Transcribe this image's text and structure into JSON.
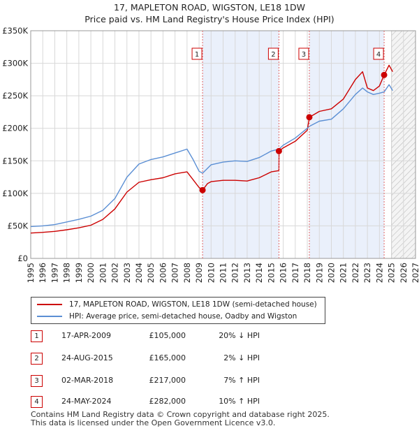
{
  "chart_data": {
    "type": "line",
    "title": "17, MAPLETON ROAD, WIGSTON, LE18 1DW",
    "subtitle": "Price paid vs. HM Land Registry's House Price Index (HPI)",
    "xlim": [
      1995,
      2027
    ],
    "ylim": [
      0,
      350000
    ],
    "x_ticks": [
      "1995",
      "1996",
      "1997",
      "1998",
      "1999",
      "2000",
      "2001",
      "2002",
      "2003",
      "2004",
      "2005",
      "2006",
      "2007",
      "2008",
      "2009",
      "2010",
      "2011",
      "2012",
      "2013",
      "2014",
      "2015",
      "2016",
      "2017",
      "2018",
      "2019",
      "2020",
      "2021",
      "2022",
      "2023",
      "2024",
      "2025",
      "2026",
      "2027"
    ],
    "y_ticks": [
      {
        "value": 0,
        "label": "£0"
      },
      {
        "value": 50000,
        "label": "£50K"
      },
      {
        "value": 100000,
        "label": "£100K"
      },
      {
        "value": 150000,
        "label": "£150K"
      },
      {
        "value": 200000,
        "label": "£200K"
      },
      {
        "value": 250000,
        "label": "£250K"
      },
      {
        "value": 300000,
        "label": "£300K"
      },
      {
        "value": 350000,
        "label": "£350K"
      }
    ],
    "grid": true,
    "forecast_start": 2025.0,
    "series": [
      {
        "name": "17, MAPLETON ROAD, WIGSTON, LE18 1DW (semi-detached house)",
        "color": "#cc0000",
        "x": [
          1995.0,
          1996.0,
          1997.0,
          1998.0,
          1999.0,
          2000.0,
          2001.0,
          2002.0,
          2003.0,
          2004.0,
          2005.0,
          2006.0,
          2007.0,
          2008.0,
          2008.5,
          2009.0,
          2009.29,
          2009.7,
          2010.0,
          2011.0,
          2012.0,
          2013.0,
          2014.0,
          2015.0,
          2015.64,
          2015.65,
          2016.0,
          2017.0,
          2018.0,
          2018.17,
          2019.0,
          2020.0,
          2021.0,
          2022.0,
          2022.6,
          2023.0,
          2023.5,
          2024.0,
          2024.39,
          2024.8,
          2025.1
        ],
        "y": [
          39000,
          40000,
          41500,
          44000,
          47000,
          51000,
          60000,
          76000,
          102000,
          117000,
          121000,
          124000,
          130000,
          133000,
          121000,
          109000,
          105000,
          115000,
          118000,
          120000,
          120000,
          119000,
          124000,
          133000,
          135000,
          165000,
          170000,
          180000,
          197000,
          217000,
          226000,
          230000,
          245000,
          275000,
          287000,
          262000,
          258000,
          265000,
          282000,
          297000,
          287000
        ]
      },
      {
        "name": "HPI: Average price, semi-detached house, Oadby and Wigston",
        "color": "#5b8fd4",
        "x": [
          1995.0,
          1996.0,
          1997.0,
          1998.0,
          1999.0,
          2000.0,
          2001.0,
          2002.0,
          2003.0,
          2004.0,
          2005.0,
          2006.0,
          2007.0,
          2008.0,
          2008.5,
          2009.0,
          2009.29,
          2010.0,
          2011.0,
          2012.0,
          2013.0,
          2014.0,
          2015.0,
          2015.64,
          2016.0,
          2017.0,
          2018.0,
          2018.17,
          2019.0,
          2020.0,
          2021.0,
          2022.0,
          2022.6,
          2023.0,
          2023.5,
          2024.0,
          2024.39,
          2024.8,
          2025.1
        ],
        "y": [
          49000,
          50000,
          52000,
          56000,
          60000,
          65000,
          74000,
          92000,
          125000,
          145000,
          152000,
          156000,
          162000,
          168000,
          152000,
          134000,
          131000,
          144000,
          148000,
          150000,
          149000,
          155000,
          165000,
          168000,
          174000,
          185000,
          200000,
          203000,
          211000,
          214000,
          230000,
          252000,
          262000,
          256000,
          252000,
          254000,
          256000,
          267000,
          258000
        ]
      }
    ],
    "transactions": [
      {
        "id": "1",
        "x": 2009.29,
        "y": 105000
      },
      {
        "id": "2",
        "x": 2015.64,
        "y": 165000
      },
      {
        "id": "3",
        "x": 2018.17,
        "y": 217000
      },
      {
        "id": "4",
        "x": 2024.39,
        "y": 282000
      }
    ]
  },
  "legend": {
    "property_label": "17, MAPLETON ROAD, WIGSTON, LE18 1DW (semi-detached house)",
    "hpi_label": "HPI: Average price, semi-detached house, Oadby and Wigston"
  },
  "table": [
    {
      "id": "1",
      "date": "17-APR-2009",
      "price": "£105,000",
      "hpi": "20% ↓ HPI"
    },
    {
      "id": "2",
      "date": "24-AUG-2015",
      "price": "£165,000",
      "hpi": "2% ↓ HPI"
    },
    {
      "id": "3",
      "date": "02-MAR-2018",
      "price": "£217,000",
      "hpi": "7% ↑ HPI"
    },
    {
      "id": "4",
      "date": "24-MAY-2024",
      "price": "£282,000",
      "hpi": "10% ↑ HPI"
    }
  ],
  "footer": {
    "line1": "Contains HM Land Registry data © Crown copyright and database right 2025.",
    "line2": "This data is licensed under the Open Government Licence v3.0."
  }
}
